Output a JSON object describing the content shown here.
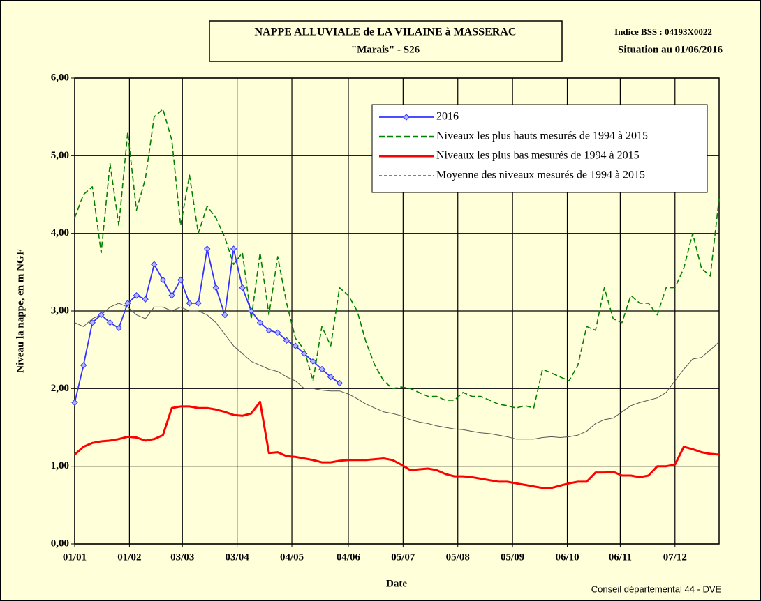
{
  "chart_data": {
    "type": "line",
    "title": "NAPPE ALLUVIALE de LA VILAINE à MASSERAC",
    "subtitle": "\"Marais\" - S26",
    "annotations": [
      "Indice BSS : 04193X0022",
      "Situation au 01/06/2016",
      "Conseil départemental 44 - DVE"
    ],
    "x_label": "Date",
    "y_label": "Niveau la nappe, en m NGF",
    "grid": true,
    "legend": "top-right",
    "xlim": [
      0,
      365
    ],
    "xticks": [
      {
        "value": 0,
        "label": "01/01"
      },
      {
        "value": 31,
        "label": "01/02"
      },
      {
        "value": 61,
        "label": "03/03"
      },
      {
        "value": 92,
        "label": "03/04"
      },
      {
        "value": 123,
        "label": "04/05"
      },
      {
        "value": 155,
        "label": "04/06"
      },
      {
        "value": 186,
        "label": "05/07"
      },
      {
        "value": 217,
        "label": "05/08"
      },
      {
        "value": 248,
        "label": "05/09"
      },
      {
        "value": 279,
        "label": "06/10"
      },
      {
        "value": 309,
        "label": "06/11"
      },
      {
        "value": 340,
        "label": "07/12"
      }
    ],
    "ylim": [
      0,
      6
    ],
    "yticks": [
      {
        "value": 0,
        "label": "0,00"
      },
      {
        "value": 1,
        "label": "1,00"
      },
      {
        "value": 2,
        "label": "2,00"
      },
      {
        "value": 3,
        "label": "3,00"
      },
      {
        "value": 4,
        "label": "4,00"
      },
      {
        "value": 5,
        "label": "5,00"
      },
      {
        "value": 6,
        "label": "6,00"
      }
    ],
    "x": [
      0,
      5,
      10,
      15,
      20,
      25,
      30,
      35,
      40,
      45,
      50,
      55,
      60,
      65,
      70,
      75,
      80,
      85,
      90,
      95,
      100,
      105,
      110,
      115,
      120,
      125,
      130,
      135,
      140,
      145,
      150,
      155,
      160,
      165,
      170,
      175,
      180,
      185,
      190,
      195,
      200,
      205,
      210,
      215,
      220,
      225,
      230,
      235,
      240,
      245,
      250,
      255,
      260,
      265,
      270,
      275,
      280,
      285,
      290,
      295,
      300,
      305,
      310,
      315,
      320,
      325,
      330,
      335,
      340,
      345,
      350,
      355,
      360,
      365
    ],
    "series": [
      {
        "name": "2016",
        "color": "#3333ff",
        "style": "marker",
        "values": [
          1.82,
          2.3,
          2.85,
          2.95,
          2.85,
          2.78,
          3.1,
          3.2,
          3.15,
          3.6,
          3.4,
          3.2,
          3.4,
          3.1,
          3.1,
          3.8,
          3.3,
          2.95,
          3.8,
          3.3,
          3.0,
          2.85,
          2.75,
          2.72,
          2.62,
          2.55,
          2.45,
          2.35,
          2.25,
          2.15,
          2.07,
          null,
          null,
          null,
          null,
          null,
          null,
          null,
          null,
          null,
          null,
          null,
          null,
          null,
          null,
          null,
          null,
          null,
          null,
          null,
          null,
          null,
          null,
          null,
          null,
          null,
          null,
          null,
          null,
          null,
          null,
          null,
          null,
          null,
          null,
          null,
          null,
          null,
          null,
          null,
          null,
          null,
          null,
          null
        ]
      },
      {
        "name": "Niveaux les plus hauts mesurés de 1994 à 2015",
        "color": "#008000",
        "style": "dashed",
        "values": [
          4.2,
          4.5,
          4.6,
          3.75,
          4.9,
          4.1,
          5.3,
          4.3,
          4.7,
          5.5,
          5.6,
          5.2,
          4.1,
          4.75,
          4.0,
          4.35,
          4.2,
          3.95,
          3.6,
          3.75,
          2.9,
          3.75,
          2.95,
          3.7,
          3.1,
          2.65,
          2.5,
          2.1,
          2.8,
          2.55,
          3.3,
          3.2,
          3.0,
          2.6,
          2.3,
          2.1,
          2.0,
          2.02,
          2.0,
          1.95,
          1.9,
          1.9,
          1.85,
          1.85,
          1.95,
          1.9,
          1.9,
          1.85,
          1.8,
          1.78,
          1.75,
          1.78,
          1.75,
          2.25,
          2.2,
          2.15,
          2.1,
          2.3,
          2.8,
          2.75,
          3.3,
          2.9,
          2.85,
          3.2,
          3.1,
          3.1,
          2.95,
          3.3,
          3.3,
          3.55,
          4.0,
          3.55,
          3.45,
          4.45
        ]
      },
      {
        "name": "Niveaux les plus bas mesurés de 1994 à 2015",
        "color": "#ff0000",
        "style": "solid",
        "values": [
          1.15,
          1.25,
          1.3,
          1.32,
          1.33,
          1.35,
          1.38,
          1.37,
          1.33,
          1.35,
          1.4,
          1.75,
          1.77,
          1.77,
          1.75,
          1.75,
          1.73,
          1.7,
          1.66,
          1.65,
          1.68,
          1.83,
          1.17,
          1.18,
          1.13,
          1.12,
          1.1,
          1.08,
          1.05,
          1.05,
          1.07,
          1.08,
          1.08,
          1.08,
          1.09,
          1.1,
          1.08,
          1.02,
          0.95,
          0.96,
          0.97,
          0.95,
          0.9,
          0.87,
          0.87,
          0.86,
          0.84,
          0.82,
          0.8,
          0.8,
          0.78,
          0.76,
          0.74,
          0.72,
          0.72,
          0.75,
          0.78,
          0.8,
          0.8,
          0.92,
          0.92,
          0.93,
          0.88,
          0.88,
          0.86,
          0.88,
          1.0,
          1.0,
          1.02,
          1.25,
          1.22,
          1.18,
          1.16,
          1.15
        ]
      },
      {
        "name": "Moyenne des niveaux mesurés de 1994 à 2015",
        "color": "#555555",
        "style": "thin",
        "values": [
          2.85,
          2.8,
          2.9,
          2.95,
          3.05,
          3.1,
          3.05,
          2.95,
          2.9,
          3.05,
          3.05,
          3.0,
          3.05,
          3.0,
          3.0,
          2.95,
          2.85,
          2.7,
          2.55,
          2.45,
          2.35,
          2.3,
          2.25,
          2.22,
          2.15,
          2.1,
          2.0,
          2.0,
          1.98,
          1.97,
          1.97,
          1.93,
          1.87,
          1.8,
          1.75,
          1.7,
          1.68,
          1.65,
          1.6,
          1.57,
          1.55,
          1.52,
          1.5,
          1.48,
          1.47,
          1.45,
          1.43,
          1.42,
          1.4,
          1.38,
          1.35,
          1.35,
          1.35,
          1.37,
          1.38,
          1.37,
          1.38,
          1.4,
          1.45,
          1.55,
          1.6,
          1.62,
          1.7,
          1.78,
          1.82,
          1.85,
          1.88,
          1.95,
          2.1,
          2.25,
          2.38,
          2.4,
          2.5,
          2.6
        ]
      }
    ]
  }
}
